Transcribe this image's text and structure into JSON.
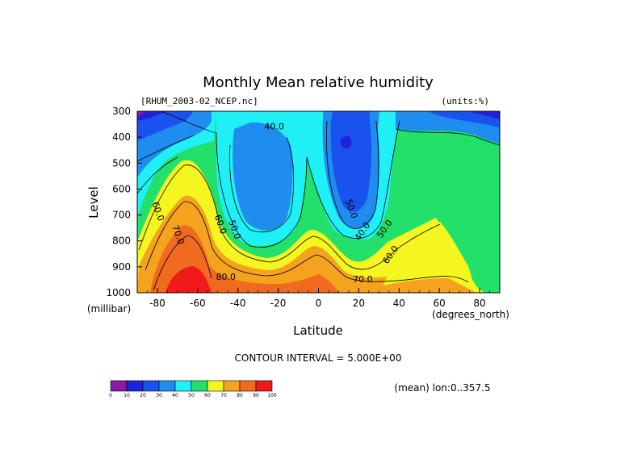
{
  "chart_data": {
    "type": "contour",
    "title": "Monthly Mean relative humidity",
    "dataset": "[RHUM_2003-02_NCEP.nc]",
    "units": "(units:%)",
    "xlabel": "Latitude",
    "x_units": "(degrees_north)",
    "ylabel": "Level",
    "y_units": "(millibar)",
    "xlim": [
      -90,
      90
    ],
    "ylim": [
      1000,
      300
    ],
    "x_ticks": [
      -80,
      -60,
      -40,
      -20,
      0,
      20,
      40,
      60,
      80
    ],
    "y_ticks": [
      300,
      400,
      500,
      600,
      700,
      800,
      900,
      1000
    ],
    "contour_interval_text": "CONTOUR INTERVAL = 5.000E+00",
    "mean_note": "(mean) lon:0..357.5",
    "colorbar": {
      "levels": [
        0,
        10,
        20,
        30,
        40,
        50,
        60,
        70,
        80,
        90,
        100
      ],
      "colors": [
        "#8c1aa8",
        "#1f22d8",
        "#1a52ee",
        "#1f8cf0",
        "#1ff0f5",
        "#22e06a",
        "#f5f51f",
        "#f5a21f",
        "#f06a1f",
        "#f01a1a"
      ]
    },
    "contour_labels": [
      {
        "text": "40.0",
        "lat": -22,
        "lev": 370
      },
      {
        "text": "50.0",
        "lat": 15,
        "lev": 680
      },
      {
        "text": "40.0",
        "lat": 23,
        "lev": 770
      },
      {
        "text": "50.0",
        "lat": 34,
        "lev": 760
      },
      {
        "text": "60.0",
        "lat": 37,
        "lev": 860
      },
      {
        "text": "70.0",
        "lat": 22,
        "lev": 960
      },
      {
        "text": "80.0",
        "lat": -46,
        "lev": 950
      },
      {
        "text": "60.0",
        "lat": -50,
        "lev": 740
      },
      {
        "text": "50.0",
        "lat": -43,
        "lev": 760
      },
      {
        "text": "70.0",
        "lat": -71,
        "lev": 780
      },
      {
        "text": "60.0",
        "lat": -81,
        "lev": 690
      }
    ],
    "grid": false
  }
}
